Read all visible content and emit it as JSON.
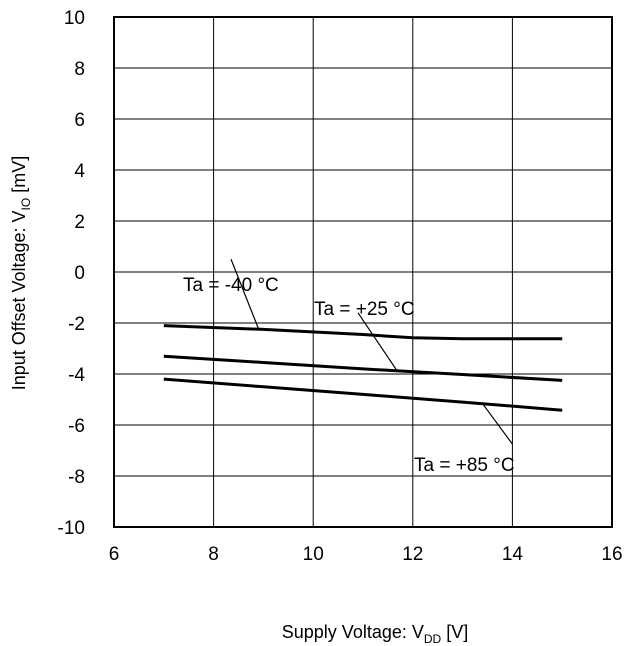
{
  "chart_data": {
    "type": "line",
    "xlabel": {
      "main": "Supply Voltage: V",
      "sub": "DD",
      "unit": " [V]"
    },
    "ylabel": {
      "main": "Input Offset Voltage: V",
      "sub": "IO",
      "unit": " [mV]"
    },
    "xlim": [
      6,
      16
    ],
    "ylim": [
      -10,
      10
    ],
    "xticks": [
      6,
      8,
      10,
      12,
      14,
      16
    ],
    "yticks": [
      10,
      8,
      6,
      4,
      2,
      0,
      -2,
      -4,
      -6,
      -8,
      -10
    ],
    "grid": true,
    "series": [
      {
        "name": "Ta = -40 °C",
        "x": [
          7,
          9,
          11,
          12,
          13,
          14,
          15
        ],
        "y": [
          -2.1,
          -2.25,
          -2.45,
          -2.58,
          -2.62,
          -2.62,
          -2.62
        ]
      },
      {
        "name": "Ta = +25 °C",
        "x": [
          7,
          9,
          11,
          13,
          15
        ],
        "y": [
          -3.3,
          -3.55,
          -3.8,
          -4.02,
          -4.25
        ]
      },
      {
        "name": "Ta = +85 °C",
        "x": [
          7,
          9,
          11,
          13,
          15
        ],
        "y": [
          -4.2,
          -4.5,
          -4.8,
          -5.1,
          -5.42
        ]
      }
    ]
  }
}
